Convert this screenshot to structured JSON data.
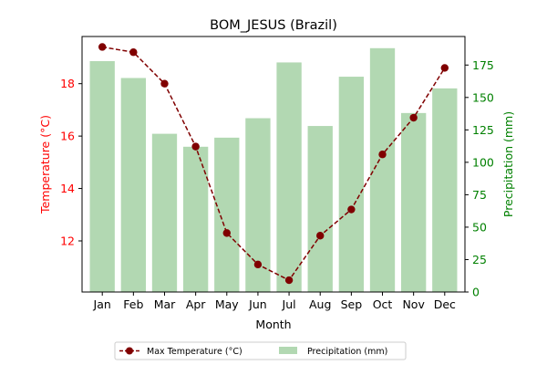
{
  "chart_data": {
    "type": "bar+line",
    "title": "BOM_JESUS (Brazil)",
    "xlabel": "Month",
    "ylabel_left": "Temperature (°C)",
    "ylabel_right": "Precipitation (mm)",
    "categories": [
      "Jan",
      "Feb",
      "Mar",
      "Apr",
      "May",
      "Jun",
      "Jul",
      "Aug",
      "Sep",
      "Oct",
      "Nov",
      "Dec"
    ],
    "ylim_left": [
      10.05,
      19.8
    ],
    "ylim_right": [
      0,
      197
    ],
    "yticks_left": [
      12,
      14,
      16,
      18
    ],
    "yticks_right": [
      0,
      25,
      50,
      75,
      100,
      125,
      150,
      175
    ],
    "series": [
      {
        "name": "Max Temperature (°C)",
        "kind": "line",
        "axis": "left",
        "color": "#800000",
        "values": [
          19.4,
          19.2,
          18.0,
          15.6,
          12.3,
          11.1,
          10.5,
          12.2,
          13.2,
          15.3,
          16.7,
          18.6
        ]
      },
      {
        "name": "Precipitation (mm)",
        "kind": "bar",
        "axis": "right",
        "color": "#b2d8b2",
        "values": [
          178,
          165,
          122,
          112,
          119,
          134,
          177,
          128,
          166,
          188,
          138,
          157
        ]
      }
    ],
    "legend_placement": "bottom-center",
    "left_axis_color": "#ff0000",
    "right_axis_color": "#008000",
    "grid": false
  }
}
